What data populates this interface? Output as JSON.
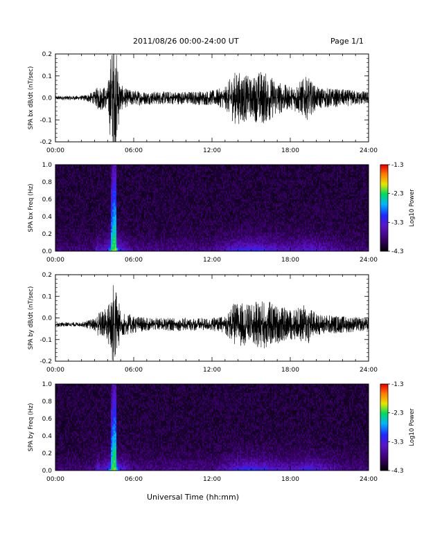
{
  "header": {
    "title": "2011/08/26  00:00-24:00 UT",
    "page": "Page 1/1"
  },
  "x_axis_title": "Universal Time (hh:mm)",
  "x_ticks": [
    "00:00",
    "06:00",
    "12:00",
    "18:00",
    "24:00"
  ],
  "colorbar": {
    "label": "Log10 Power",
    "ticks": [
      "-1.3",
      "-2.3",
      "-3.3",
      "-4.3"
    ]
  },
  "chart_data": [
    {
      "type": "line",
      "ylabel": "SPA bx dB/dt (nT/sec)",
      "xlim": [
        0,
        24
      ],
      "ylim": [
        -0.2,
        0.2
      ],
      "y_ticks": [
        "0.2",
        "0.1",
        "0.0",
        "-0.1",
        "-0.2"
      ],
      "baseline": 0.0,
      "amplitude_envelope": {
        "x": [
          0,
          2,
          3,
          3.3,
          4.0,
          4.3,
          4.6,
          5.0,
          5.5,
          7,
          10,
          12,
          13.0,
          13.7,
          14.3,
          15.0,
          15.7,
          16.3,
          17,
          18,
          19.3,
          20,
          22,
          24
        ],
        "half_range": [
          0.01,
          0.01,
          0.03,
          0.06,
          0.05,
          0.25,
          0.25,
          0.06,
          0.04,
          0.03,
          0.03,
          0.035,
          0.05,
          0.12,
          0.12,
          0.09,
          0.13,
          0.11,
          0.08,
          0.05,
          0.1,
          0.05,
          0.04,
          0.03
        ]
      }
    },
    {
      "type": "heatmap",
      "ylabel": "SPA bx Freq (Hz)",
      "xlim": [
        0,
        24
      ],
      "ylim": [
        0,
        1.0
      ],
      "y_ticks": [
        "1.0",
        "0.8",
        "0.6",
        "0.4",
        "0.2",
        "0.0"
      ],
      "color_scale": {
        "min": -4.3,
        "max": -1.3,
        "label": "Log10 Power"
      },
      "intensity_profile": {
        "x": [
          0,
          3,
          3.2,
          3.5,
          4.0,
          4.4,
          4.6,
          4.9,
          6,
          12,
          13,
          14,
          15.5,
          16.5,
          18,
          19.5,
          22,
          24
        ],
        "power": [
          -4.0,
          -4.0,
          -3.4,
          -3.6,
          -3.3,
          -2.2,
          -2.1,
          -3.3,
          -3.9,
          -3.9,
          -3.6,
          -3.3,
          -3.2,
          -3.4,
          -3.6,
          -3.4,
          -3.9,
          -4.0
        ]
      }
    },
    {
      "type": "line",
      "ylabel": "SPA by dB/dt (nT/sec)",
      "xlim": [
        0,
        24
      ],
      "ylim": [
        -0.2,
        0.2
      ],
      "y_ticks": [
        "0.2",
        "0.1",
        "0.0",
        "-0.1",
        "-0.2"
      ],
      "baseline": -0.03,
      "amplitude_envelope": {
        "x": [
          0,
          2,
          3,
          3.3,
          4.0,
          4.3,
          4.6,
          5.0,
          5.5,
          7,
          10,
          12,
          13.0,
          13.7,
          14.3,
          15.0,
          15.7,
          16.3,
          17,
          18,
          18.7,
          19.3,
          20,
          22,
          24
        ],
        "half_range": [
          0.01,
          0.01,
          0.03,
          0.06,
          0.08,
          0.2,
          0.2,
          0.06,
          0.05,
          0.03,
          0.03,
          0.03,
          0.04,
          0.1,
          0.1,
          0.09,
          0.12,
          0.11,
          0.09,
          0.07,
          0.08,
          0.1,
          0.05,
          0.04,
          0.03
        ]
      }
    },
    {
      "type": "heatmap",
      "ylabel": "SPA by Freq (Hz)",
      "xlim": [
        0,
        24
      ],
      "ylim": [
        0,
        1.0
      ],
      "y_ticks": [
        "1.0",
        "0.8",
        "0.6",
        "0.4",
        "0.2",
        "0.0"
      ],
      "color_scale": {
        "min": -4.3,
        "max": -1.3,
        "label": "Log10 Power"
      },
      "intensity_profile": {
        "x": [
          0,
          3,
          3.2,
          3.5,
          4.0,
          4.4,
          4.6,
          4.9,
          6,
          12,
          13,
          14,
          15.5,
          16.5,
          18,
          19.5,
          22,
          24
        ],
        "power": [
          -4.0,
          -4.0,
          -3.4,
          -3.6,
          -3.3,
          -2.2,
          -2.1,
          -3.3,
          -3.9,
          -3.9,
          -3.6,
          -3.3,
          -3.2,
          -3.4,
          -3.6,
          -3.3,
          -3.9,
          -4.0
        ]
      }
    }
  ]
}
